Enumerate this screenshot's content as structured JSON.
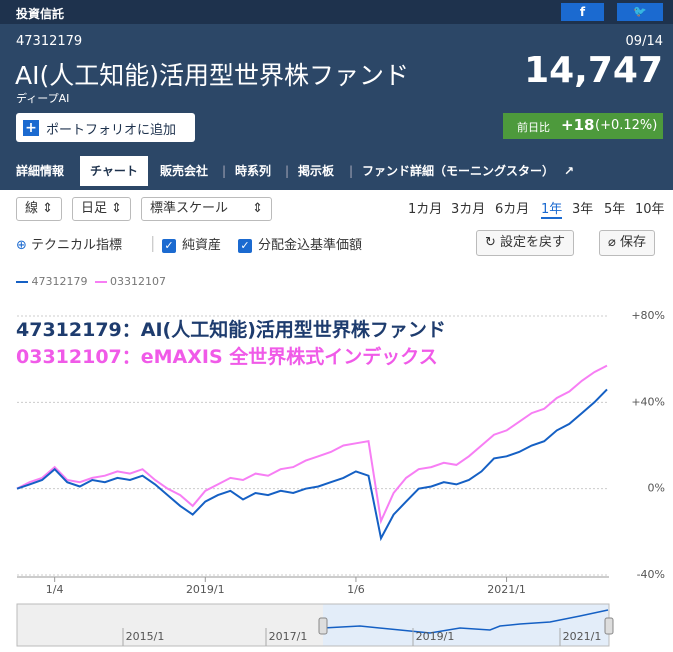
{
  "header": {
    "section": "投資信託",
    "fund_code": "47312179",
    "date": "09/14",
    "fund_name": "AI(人工知能)活用型世界株ファンド",
    "nickname": "ディープAI",
    "price": "14,747",
    "portfolio_button": "ポートフォリオに追加",
    "change_label": "前日比",
    "change": "+18",
    "change_pct": "(+0.12%)"
  },
  "tabs": [
    "詳細情報",
    "チャート",
    "販売会社",
    "時系列",
    "掲示板",
    "ファンド詳細（モーニングスター）"
  ],
  "controls": {
    "selects": [
      "線",
      "日足",
      "標準スケール"
    ],
    "periods": [
      "1カ月",
      "3カ月",
      "6カ月",
      "1年",
      "3年",
      "5年",
      "10年"
    ]
  },
  "options": {
    "technical": "テクニカル指標",
    "net_assets": "純資産",
    "dividend_adjusted": "分配金込基準価額",
    "reset": "設定を戻す",
    "save": "保存"
  },
  "chart_data": {
    "type": "line",
    "annotations": [
      "47312179：AI(人工知能)活用型世界株ファンド",
      "03312107：eMAXIS 全世界株式インデックス"
    ],
    "categories": [
      null,
      null,
      null,
      "1/4",
      null,
      null,
      null,
      null,
      null,
      null,
      null,
      null,
      null,
      null,
      null,
      "2019/1",
      null,
      null,
      null,
      null,
      null,
      null,
      null,
      null,
      null,
      null,
      null,
      "1/6",
      null,
      null,
      null,
      null,
      null,
      null,
      null,
      null,
      null,
      null,
      null,
      "2021/1",
      null,
      null,
      null,
      null,
      null,
      null,
      null,
      null
    ],
    "series": [
      {
        "name": "47312179",
        "color": "#1560c4",
        "values": [
          0,
          2,
          4,
          9,
          3,
          1,
          4,
          3,
          5,
          4,
          6,
          2,
          -3,
          -8,
          -12,
          -6,
          -3,
          -1,
          -5,
          -2,
          -3,
          -1,
          -2,
          0,
          1,
          3,
          5,
          8,
          6,
          -23,
          -12,
          -6,
          0,
          1,
          3,
          2,
          4,
          8,
          14,
          15,
          17,
          20,
          22,
          27,
          30,
          35,
          40,
          46
        ]
      },
      {
        "name": "03312107",
        "color": "#f77ef4",
        "values": [
          0,
          3,
          5,
          10,
          4,
          3,
          5,
          6,
          8,
          7,
          9,
          4,
          0,
          -3,
          -8,
          -1,
          2,
          5,
          4,
          7,
          6,
          9,
          10,
          13,
          15,
          17,
          20,
          21,
          22,
          -15,
          -2,
          5,
          9,
          10,
          12,
          11,
          15,
          20,
          25,
          27,
          31,
          35,
          37,
          42,
          45,
          50,
          54,
          57
        ]
      }
    ],
    "ylim": [
      -40,
      80
    ],
    "yticks": [
      {
        "value": -40,
        "label": "-40%"
      },
      {
        "value": 0,
        "label": "0%"
      },
      {
        "value": 40,
        "label": "+40%"
      },
      {
        "value": 80,
        "label": "+80%"
      }
    ],
    "grid": true
  },
  "navigator": {
    "labels": [
      "2015/1",
      "2017/1",
      "2019/1",
      "2021/1"
    ]
  }
}
